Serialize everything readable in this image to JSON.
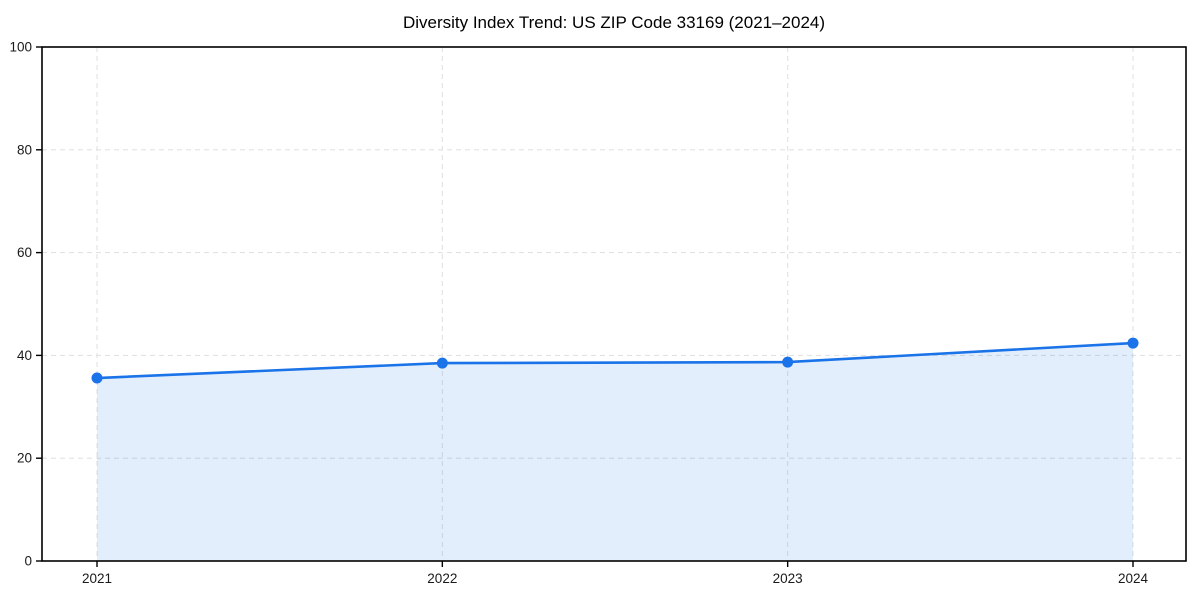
{
  "chart_data": {
    "type": "area",
    "title": "Diversity Index Trend: US ZIP Code 33169 (2021–2024)",
    "categories": [
      "2021",
      "2022",
      "2023",
      "2024"
    ],
    "series": [
      {
        "name": "Diversity Index",
        "values": [
          35.6,
          38.5,
          38.7,
          42.4
        ]
      }
    ],
    "xlabel": "",
    "ylabel": "",
    "ylim": [
      0,
      100
    ],
    "yticks": [
      0,
      20,
      40,
      60,
      80,
      100
    ],
    "grid": "dashed-both-axes",
    "legend_position": "none",
    "colors": {
      "line": "#1a73e8",
      "fill": "rgba(26,115,232,0.12)",
      "marker": "#1a73e8",
      "gridline": "#e2e2e2",
      "spine": "#000000",
      "background": "#ffffff"
    }
  }
}
